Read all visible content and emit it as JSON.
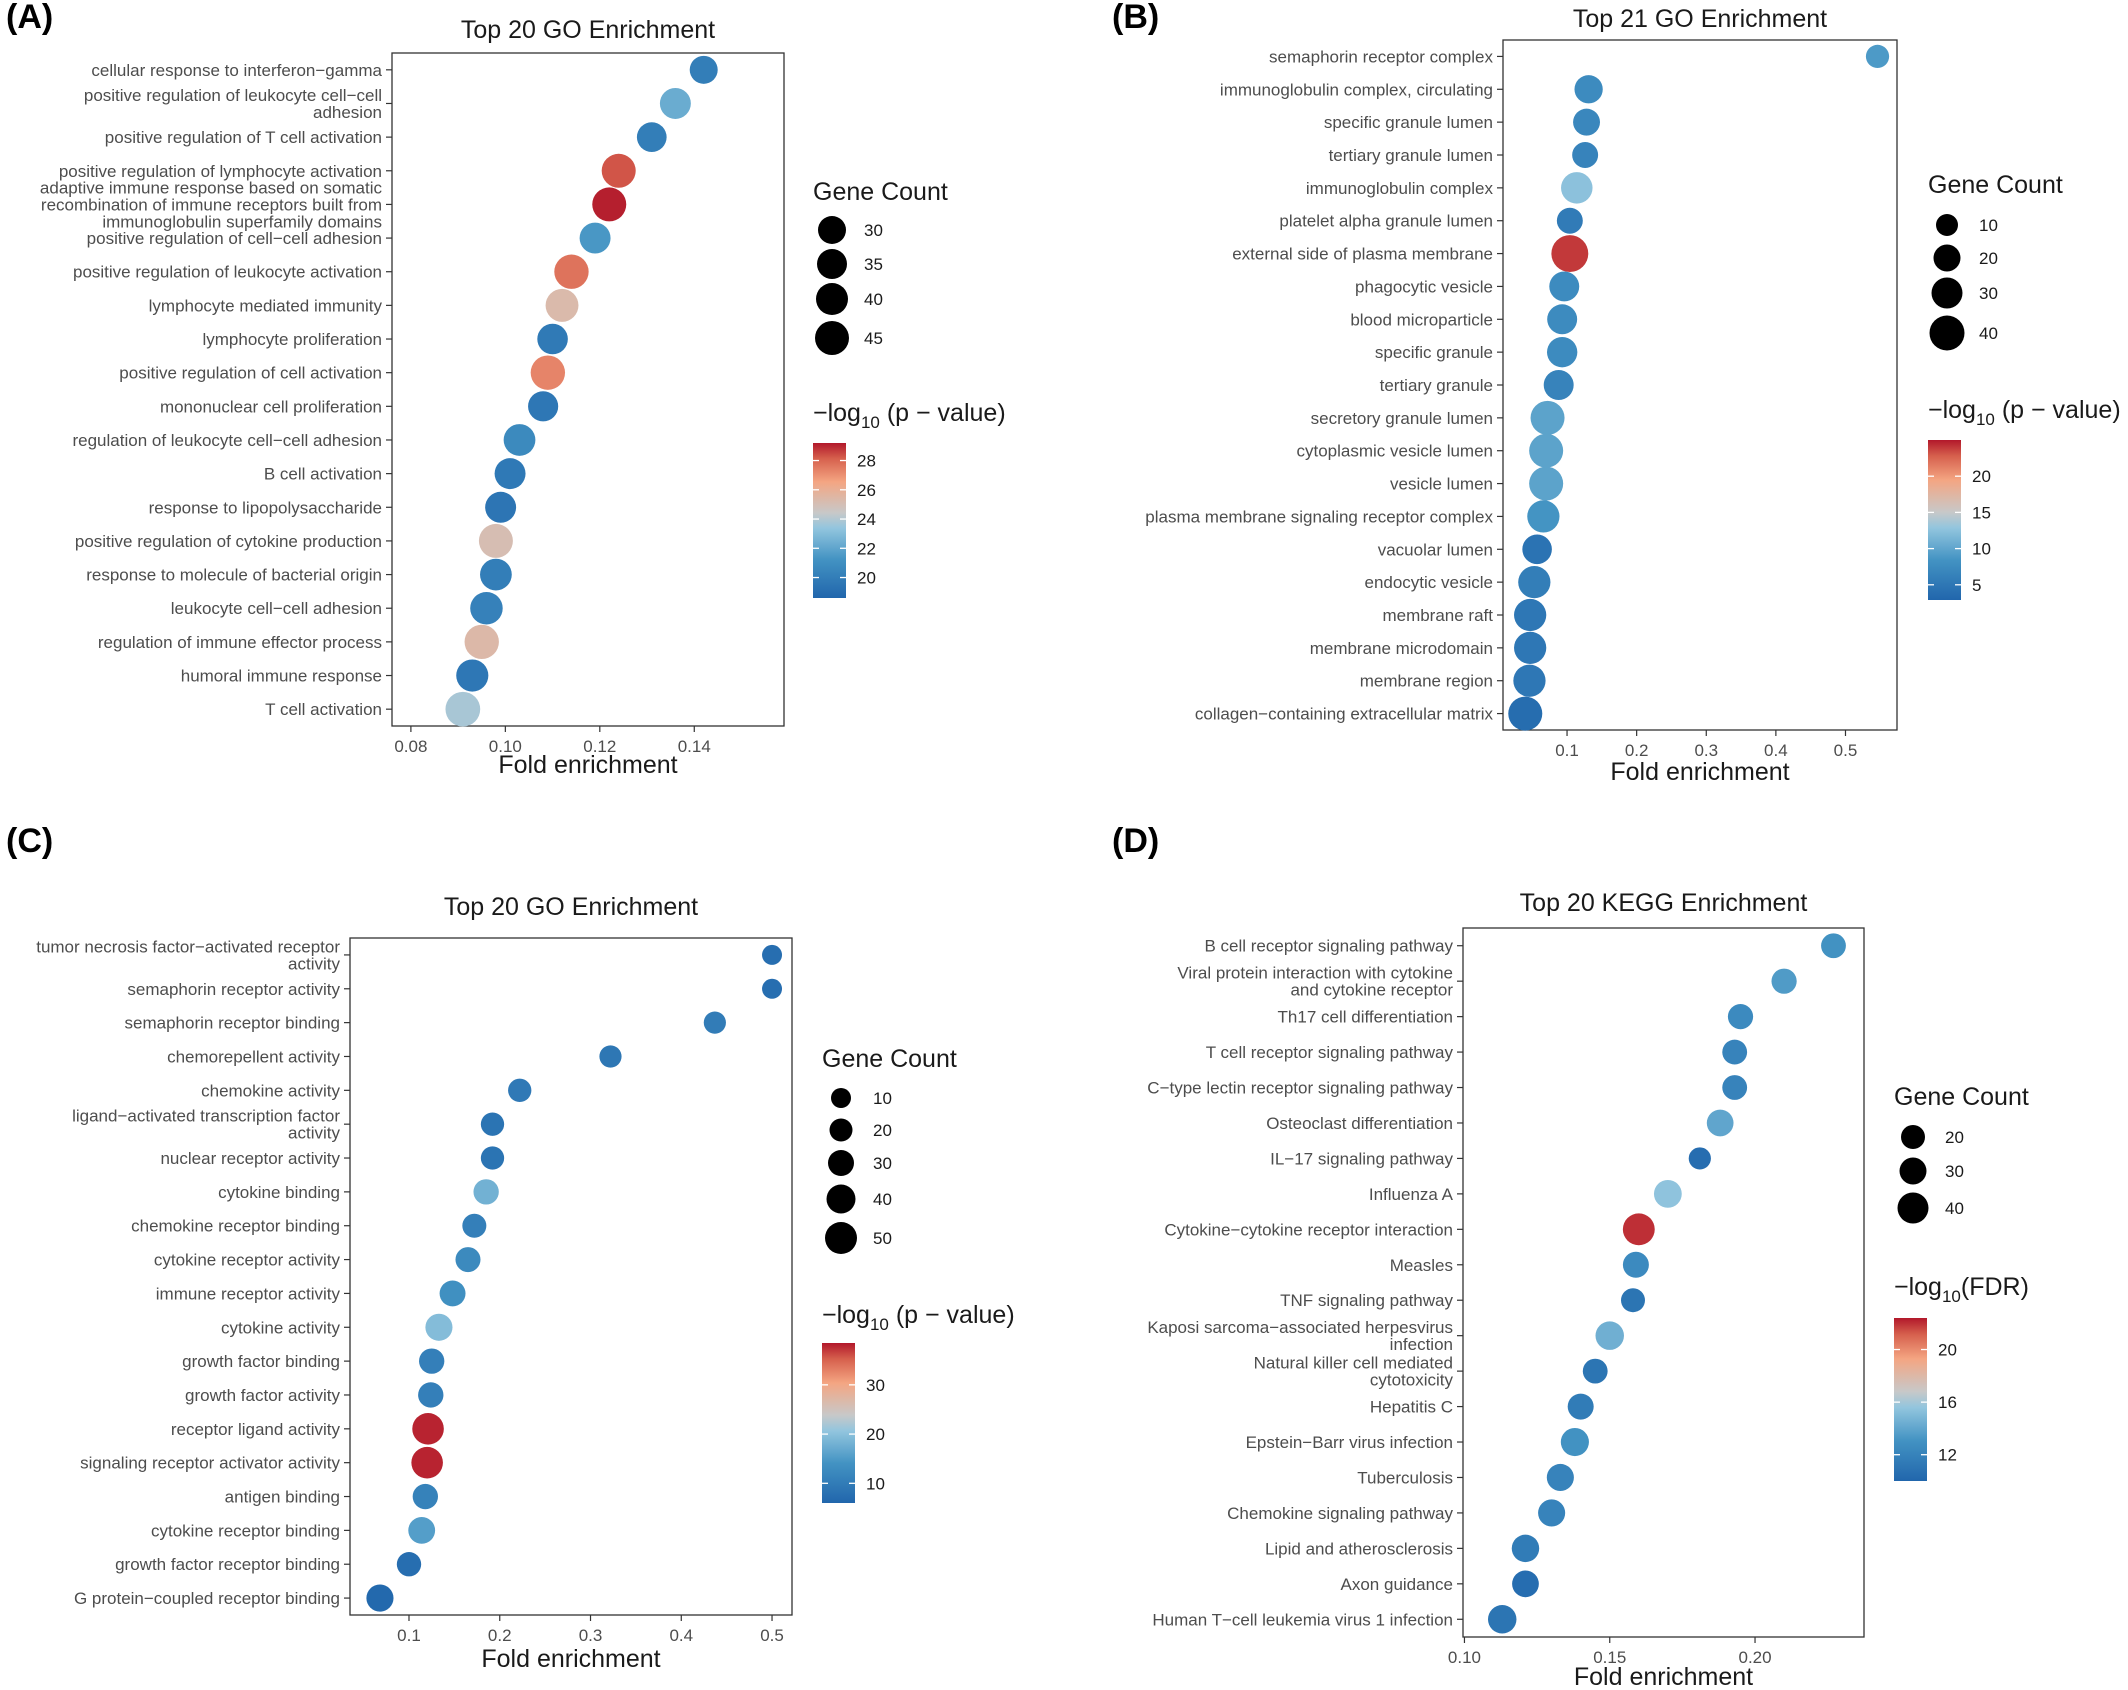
{
  "chart_data": [
    {
      "type": "scatter",
      "panel": "(A)",
      "title": "Top  20  GO Enrichment",
      "xlabel": "Fold enrichment",
      "ylabel": "",
      "xlim": [
        0.076,
        0.159
      ],
      "xticks": [
        0.08,
        0.1,
        0.12,
        0.14
      ],
      "xtick_labels": [
        "0.08",
        "0.10",
        "0.12",
        "0.14"
      ],
      "size_legend": {
        "title": "Gene Count",
        "values": [
          30,
          35,
          40,
          45
        ]
      },
      "color_legend": {
        "title_prefix": "−log",
        "title_sub": "10",
        "title_suffix": " (p − value)",
        "ticks": [
          20,
          22,
          24,
          26,
          28
        ],
        "range": [
          18.6,
          29.2
        ]
      },
      "points": [
        {
          "category": "cellular response to interferon−gamma",
          "fold": 0.142,
          "count": 30,
          "color": 20.0
        },
        {
          "category": "positive regulation of leukocyte cell−cell\nadhesion",
          "fold": 0.136,
          "count": 37,
          "color": 22.3
        },
        {
          "category": "positive regulation of T cell activation",
          "fold": 0.131,
          "count": 34,
          "color": 20.0
        },
        {
          "category": "positive regulation of lymphocyte activation",
          "fold": 0.124,
          "count": 45,
          "color": 28.3
        },
        {
          "category": "adaptive immune response based on somatic\nrecombination of immune receptors built from\nimmunoglobulin superfamily domains",
          "fold": 0.122,
          "count": 45,
          "color": 29.1
        },
        {
          "category": "positive regulation of cell−cell adhesion",
          "fold": 0.119,
          "count": 37,
          "color": 21.4
        },
        {
          "category": "positive regulation of leukocyte activation",
          "fold": 0.114,
          "count": 46,
          "color": 27.7
        },
        {
          "category": "lymphocyte mediated immunity",
          "fold": 0.112,
          "count": 42,
          "color": 25.3
        },
        {
          "category": "lymphocyte proliferation",
          "fold": 0.11,
          "count": 36,
          "color": 19.8
        },
        {
          "category": "positive regulation of cell activation",
          "fold": 0.109,
          "count": 46,
          "color": 27.3
        },
        {
          "category": "mononuclear cell proliferation",
          "fold": 0.108,
          "count": 35,
          "color": 19.6
        },
        {
          "category": "regulation of leukocyte cell−cell adhesion",
          "fold": 0.103,
          "count": 39,
          "color": 20.7
        },
        {
          "category": "B cell activation",
          "fold": 0.101,
          "count": 37,
          "color": 19.7
        },
        {
          "category": "response to lipopolysaccharide",
          "fold": 0.099,
          "count": 37,
          "color": 19.5
        },
        {
          "category": "positive regulation of cytokine production",
          "fold": 0.098,
          "count": 45,
          "color": 25.1
        },
        {
          "category": "response to molecule of bacterial origin",
          "fold": 0.098,
          "count": 39,
          "color": 20.0
        },
        {
          "category": "leukocyte cell−cell adhesion",
          "fold": 0.096,
          "count": 41,
          "color": 20.2
        },
        {
          "category": "regulation of immune effector process",
          "fold": 0.095,
          "count": 46,
          "color": 25.4
        },
        {
          "category": "humoral immune response",
          "fold": 0.093,
          "count": 40,
          "color": 19.6
        },
        {
          "category": "T cell activation",
          "fold": 0.091,
          "count": 47,
          "color": 23.8
        }
      ]
    },
    {
      "type": "scatter",
      "panel": "(B)",
      "title": "Top  21  GO Enrichment",
      "xlabel": "Fold enrichment",
      "ylabel": "",
      "xlim": [
        0.008,
        0.574
      ],
      "xticks": [
        0.1,
        0.2,
        0.3,
        0.4,
        0.5
      ],
      "xtick_labels": [
        "0.1",
        "0.2",
        "0.3",
        "0.4",
        "0.5"
      ],
      "size_legend": {
        "title": "Gene Count",
        "values": [
          10,
          20,
          30,
          40
        ]
      },
      "color_legend": {
        "title_prefix": "−log",
        "title_sub": "10",
        "title_suffix": " (p − value)",
        "ticks": [
          5,
          10,
          15,
          20
        ],
        "range": [
          2.9,
          25.0
        ]
      },
      "points": [
        {
          "category": "semaphorin receptor complex",
          "fold": 0.546,
          "count": 12,
          "color": 9.0
        },
        {
          "category": "immunoglobulin complex, circulating",
          "fold": 0.131,
          "count": 22,
          "color": 7.5
        },
        {
          "category": "specific granule lumen",
          "fold": 0.128,
          "count": 19,
          "color": 7.0
        },
        {
          "category": "tertiary granule lumen",
          "fold": 0.126,
          "count": 17,
          "color": 6.5
        },
        {
          "category": "immunoglobulin complex",
          "fold": 0.114,
          "count": 30,
          "color": 12.5
        },
        {
          "category": "platelet alpha granule lumen",
          "fold": 0.104,
          "count": 17,
          "color": 5.5
        },
        {
          "category": "external side of plasma membrane",
          "fold": 0.104,
          "count": 46,
          "color": 24.0
        },
        {
          "category": "phagocytic vesicle",
          "fold": 0.096,
          "count": 26,
          "color": 7.5
        },
        {
          "category": "blood microparticle",
          "fold": 0.093,
          "count": 26,
          "color": 7.5
        },
        {
          "category": "specific granule",
          "fold": 0.093,
          "count": 27,
          "color": 7.5
        },
        {
          "category": "tertiary granule",
          "fold": 0.088,
          "count": 26,
          "color": 6.5
        },
        {
          "category": "secretory granule lumen",
          "fold": 0.072,
          "count": 37,
          "color": 9.8
        },
        {
          "category": "cytoplasmic vesicle lumen",
          "fold": 0.07,
          "count": 37,
          "color": 9.8
        },
        {
          "category": "vesicle lumen",
          "fold": 0.07,
          "count": 37,
          "color": 9.8
        },
        {
          "category": "plasma membrane signaling receptor complex",
          "fold": 0.066,
          "count": 32,
          "color": 8.5
        },
        {
          "category": "vacuolar lumen",
          "fold": 0.057,
          "count": 25,
          "color": 4.5
        },
        {
          "category": "endocytic vesicle",
          "fold": 0.053,
          "count": 32,
          "color": 5.8
        },
        {
          "category": "membrane raft",
          "fold": 0.047,
          "count": 32,
          "color": 5.0
        },
        {
          "category": "membrane microdomain",
          "fold": 0.047,
          "count": 32,
          "color": 5.0
        },
        {
          "category": "membrane region",
          "fold": 0.046,
          "count": 32,
          "color": 5.0
        },
        {
          "category": "collagen−containing extracellular matrix",
          "fold": 0.04,
          "count": 37,
          "color": 3.7
        }
      ]
    },
    {
      "type": "scatter",
      "panel": "(C)",
      "title": "Top  20  GO Enrichment",
      "xlabel": "Fold enrichment",
      "ylabel": "",
      "xlim": [
        0.035,
        0.522
      ],
      "xticks": [
        0.1,
        0.2,
        0.3,
        0.4,
        0.5
      ],
      "xtick_labels": [
        "0.1",
        "0.2",
        "0.3",
        "0.4",
        "0.5"
      ],
      "size_legend": {
        "title": "Gene Count",
        "values": [
          10,
          20,
          30,
          40,
          50
        ]
      },
      "color_legend": {
        "title_prefix": "−log",
        "title_sub": "10",
        "title_suffix": " (p − value)",
        "ticks": [
          10,
          20,
          30
        ],
        "range": [
          6.0,
          38.5
        ]
      },
      "points": [
        {
          "category": "tumor necrosis factor−activated receptor\nactivity",
          "fold": 0.5,
          "count": 10,
          "color": 7.5
        },
        {
          "category": "semaphorin receptor activity",
          "fold": 0.5,
          "count": 10,
          "color": 7.5
        },
        {
          "category": "semaphorin receptor binding",
          "fold": 0.437,
          "count": 15,
          "color": 10.0
        },
        {
          "category": "chemorepellent activity",
          "fold": 0.322,
          "count": 15,
          "color": 9.0
        },
        {
          "category": "chemokine activity",
          "fold": 0.222,
          "count": 18,
          "color": 9.5
        },
        {
          "category": "ligand−activated transcription factor\nactivity",
          "fold": 0.192,
          "count": 18,
          "color": 8.5
        },
        {
          "category": "nuclear receptor activity",
          "fold": 0.192,
          "count": 18,
          "color": 8.5
        },
        {
          "category": "cytokine binding",
          "fold": 0.185,
          "count": 24,
          "color": 18.0
        },
        {
          "category": "chemokine receptor binding",
          "fold": 0.172,
          "count": 20,
          "color": 10.5
        },
        {
          "category": "cytokine receptor activity",
          "fold": 0.165,
          "count": 23,
          "color": 12.5
        },
        {
          "category": "immune receptor activity",
          "fold": 0.148,
          "count": 26,
          "color": 13.5
        },
        {
          "category": "cytokine activity",
          "fold": 0.133,
          "count": 30,
          "color": 19.5
        },
        {
          "category": "growth factor binding",
          "fold": 0.125,
          "count": 24,
          "color": 10.5
        },
        {
          "category": "growth factor activity",
          "fold": 0.124,
          "count": 24,
          "color": 10.5
        },
        {
          "category": "receptor ligand activity",
          "fold": 0.121,
          "count": 48,
          "color": 38.0
        },
        {
          "category": "signaling receptor activator activity",
          "fold": 0.12,
          "count": 48,
          "color": 38.0
        },
        {
          "category": "antigen binding",
          "fold": 0.118,
          "count": 24,
          "color": 11.0
        },
        {
          "category": "cytokine receptor binding",
          "fold": 0.114,
          "count": 29,
          "color": 15.5
        },
        {
          "category": "growth factor receptor binding",
          "fold": 0.1,
          "count": 21,
          "color": 7.5
        },
        {
          "category": "G protein−coupled receptor binding",
          "fold": 0.068,
          "count": 30,
          "color": 6.5
        }
      ]
    },
    {
      "type": "scatter",
      "panel": "(D)",
      "title": "Top  20  KEGG Enrichment",
      "xlabel": "Fold enrichment",
      "ylabel": "",
      "xlim": [
        0.0995,
        0.2375
      ],
      "xticks": [
        0.1,
        0.15,
        0.2
      ],
      "xtick_labels": [
        "0.10",
        "0.15",
        "0.20"
      ],
      "size_legend": {
        "title": "Gene Count",
        "values": [
          20,
          30,
          40
        ]
      },
      "color_legend": {
        "title_prefix": "−log",
        "title_sub": "10",
        "title_suffix": "(FDR)",
        "ticks": [
          12,
          16,
          20
        ],
        "range": [
          10.0,
          22.4
        ]
      },
      "points": [
        {
          "category": "B cell receptor signaling pathway",
          "fold": 0.227,
          "count": 22,
          "color": 13.0
        },
        {
          "category": "Viral protein interaction with cytokine\nand cytokine receptor",
          "fold": 0.21,
          "count": 23,
          "color": 13.5
        },
        {
          "category": "Th17 cell differentiation",
          "fold": 0.195,
          "count": 23,
          "color": 12.5
        },
        {
          "category": "T cell receptor signaling pathway",
          "fold": 0.193,
          "count": 22,
          "color": 12.0
        },
        {
          "category": "C−type lectin receptor signaling pathway",
          "fold": 0.193,
          "count": 22,
          "color": 12.0
        },
        {
          "category": "Osteoclast differentiation",
          "fold": 0.188,
          "count": 27,
          "color": 14.0
        },
        {
          "category": "IL−17 signaling pathway",
          "fold": 0.181,
          "count": 16,
          "color": 10.5
        },
        {
          "category": "Influenza A",
          "fold": 0.17,
          "count": 30,
          "color": 15.5
        },
        {
          "category": "Cytokine−cytokine receptor interaction",
          "fold": 0.16,
          "count": 43,
          "color": 22.0
        },
        {
          "category": "Measles",
          "fold": 0.159,
          "count": 25,
          "color": 12.5
        },
        {
          "category": "TNF signaling pathway",
          "fold": 0.158,
          "count": 20,
          "color": 11.0
        },
        {
          "category": "Kaposi sarcoma−associated herpesvirus\ninfection",
          "fold": 0.15,
          "count": 32,
          "color": 14.5
        },
        {
          "category": "Natural killer cell mediated\ncytotoxicity",
          "fold": 0.145,
          "count": 22,
          "color": 11.0
        },
        {
          "category": "Hepatitis C",
          "fold": 0.14,
          "count": 25,
          "color": 11.5
        },
        {
          "category": "Epstein−Barr virus infection",
          "fold": 0.138,
          "count": 31,
          "color": 13.0
        },
        {
          "category": "Tuberculosis",
          "fold": 0.133,
          "count": 28,
          "color": 12.0
        },
        {
          "category": "Chemokine signaling pathway",
          "fold": 0.13,
          "count": 28,
          "color": 12.0
        },
        {
          "category": "Lipid and atherosclerosis",
          "fold": 0.121,
          "count": 29,
          "color": 11.5
        },
        {
          "category": "Axon guidance",
          "fold": 0.121,
          "count": 27,
          "color": 10.5
        },
        {
          "category": "Human T−cell leukemia virus 1 infection",
          "fold": 0.113,
          "count": 32,
          "color": 11.0
        }
      ]
    }
  ]
}
